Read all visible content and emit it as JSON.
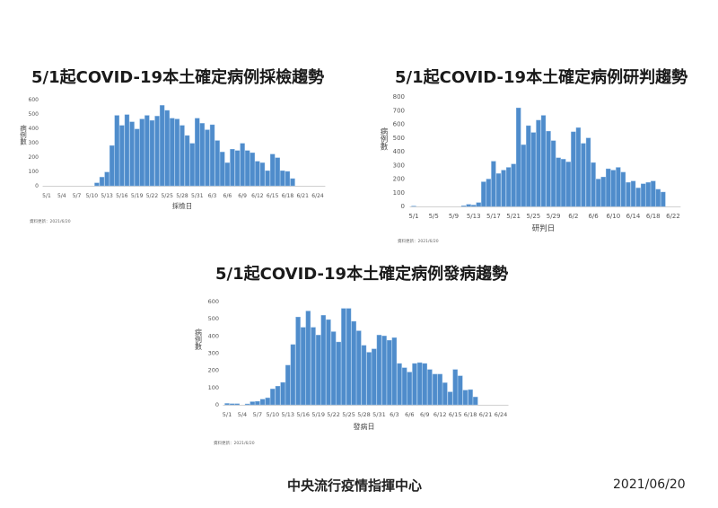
{
  "footer": {
    "org": "中央流行疫情指揮中心",
    "date": "2021/06/20"
  },
  "chart_data": [
    {
      "type": "bar",
      "title": "5/1起COVID-19本土確定病例採檢趨勢",
      "xlabel": "採檢日",
      "ylabel": "病例數",
      "source": "資料更新：2021/6/20",
      "ylim": [
        0,
        600
      ],
      "yticks": [
        0,
        100,
        200,
        300,
        400,
        500,
        600
      ],
      "xticks": [
        "5/1",
        "5/4",
        "5/7",
        "5/10",
        "5/13",
        "5/16",
        "5/19",
        "5/22",
        "5/25",
        "5/28",
        "5/31",
        "6/3",
        "6/6",
        "6/9",
        "6/12",
        "6/15",
        "6/18",
        "6/21",
        "6/24"
      ],
      "x_range": [
        "5/1",
        "6/24"
      ],
      "tick_step_days": 3,
      "bar_color": "#4f8ccb",
      "grid": false,
      "start": "5/11",
      "values": [
        20,
        60,
        95,
        280,
        490,
        420,
        495,
        445,
        395,
        465,
        490,
        455,
        485,
        560,
        525,
        470,
        465,
        420,
        350,
        295,
        470,
        435,
        390,
        425,
        315,
        235,
        160,
        255,
        245,
        295,
        245,
        230,
        170,
        160,
        105,
        220,
        195,
        105,
        100,
        50
      ]
    },
    {
      "type": "bar",
      "title": "5/1起COVID-19本土確定病例研判趨勢",
      "xlabel": "研判日",
      "ylabel": "病例數",
      "source": "資料更新：2021/6/20",
      "ylim": [
        0,
        800
      ],
      "yticks": [
        0,
        100,
        200,
        300,
        400,
        500,
        600,
        700,
        800
      ],
      "xticks": [
        "5/1",
        "5/5",
        "5/9",
        "5/13",
        "5/17",
        "5/21",
        "5/25",
        "5/29",
        "6/2",
        "6/6",
        "6/10",
        "6/14",
        "6/18",
        "6/22"
      ],
      "x_range": [
        "5/1",
        "6/22"
      ],
      "tick_step_days": 4,
      "bar_color": "#4f8ccb",
      "grid": false,
      "start": "5/1",
      "values": [
        3,
        0,
        0,
        0,
        0,
        0,
        0,
        0,
        0,
        0,
        5,
        15,
        10,
        28,
        180,
        200,
        330,
        240,
        265,
        285,
        310,
        720,
        450,
        590,
        540,
        630,
        665,
        550,
        480,
        355,
        345,
        325,
        545,
        575,
        460,
        500,
        320,
        200,
        215,
        275,
        265,
        285,
        250,
        175,
        185,
        135,
        165,
        175,
        185,
        125,
        105
      ]
    },
    {
      "type": "bar",
      "title": "5/1起COVID-19本土確定病例發病趨勢",
      "xlabel": "發病日",
      "ylabel": "病例數",
      "source": "資料更新：2021/6/20",
      "ylim": [
        0,
        600
      ],
      "yticks": [
        0,
        100,
        200,
        300,
        400,
        500,
        600
      ],
      "xticks": [
        "5/1",
        "5/4",
        "5/7",
        "5/10",
        "5/13",
        "5/16",
        "5/19",
        "5/22",
        "5/25",
        "5/28",
        "5/31",
        "6/3",
        "6/6",
        "6/9",
        "6/12",
        "6/15",
        "6/18",
        "6/21",
        "6/24"
      ],
      "x_range": [
        "5/1",
        "6/24"
      ],
      "tick_step_days": 3,
      "bar_color": "#4f8ccb",
      "grid": false,
      "start": "5/1",
      "values": [
        8,
        6,
        6,
        0,
        5,
        18,
        20,
        32,
        40,
        92,
        108,
        130,
        230,
        350,
        510,
        450,
        545,
        450,
        405,
        520,
        495,
        425,
        365,
        560,
        560,
        485,
        430,
        345,
        305,
        325,
        405,
        400,
        375,
        390,
        240,
        215,
        190,
        240,
        245,
        240,
        205,
        178,
        178,
        128,
        75,
        205,
        168,
        85,
        88,
        45
      ]
    }
  ]
}
